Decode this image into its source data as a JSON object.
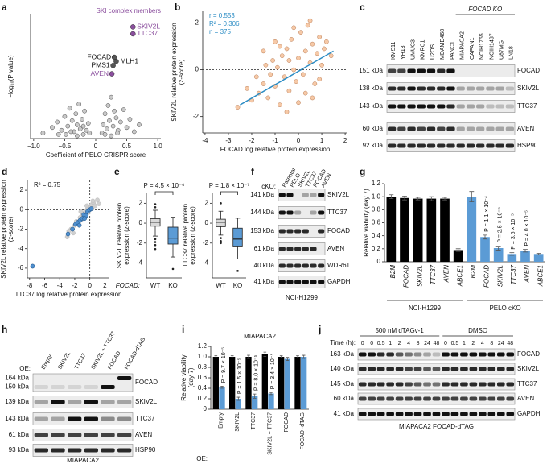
{
  "panel_labels": [
    "a",
    "b",
    "c",
    "d",
    "e",
    "f",
    "g",
    "h",
    "i",
    "j"
  ],
  "chart_data": [
    {
      "type": "scatter",
      "title": "SKI complex members",
      "title_color": "#8b4f9e",
      "x_label": "Coefficient of PELO CRISPR score",
      "y_label": [
        "−log₁₀(P value)"
      ],
      "xlim": [
        -1.05,
        1.05
      ],
      "xticks": [
        {
          "value": -1,
          "label": "−1.0"
        },
        {
          "value": -0.5,
          "label": "−0.5"
        },
        0,
        0.5,
        {
          "value": 1,
          "label": "1.0"
        }
      ],
      "ylim": [
        0,
        9
      ],
      "series": [
        {
          "color": "#c9c9c9",
          "stroke": "#444444",
          "x": [
            -0.85,
            -0.7,
            -0.62,
            -0.55,
            -0.5,
            -0.45,
            -0.42,
            -0.38,
            -0.35,
            -0.32,
            -0.3,
            -0.27,
            -0.25,
            -0.22,
            -0.2,
            -0.18,
            -0.15,
            -0.12,
            -0.1,
            -0.6,
            -0.48,
            -0.4,
            -0.3,
            -0.2,
            0.1,
            0.12,
            0.15,
            0.18,
            0.2,
            0.22,
            0.25,
            0.28,
            0.3,
            0.33,
            0.36,
            0.4,
            0.45,
            0.5,
            0.55,
            0.62,
            0.7,
            0.15,
            0.25,
            0.35
          ],
          "y": [
            0.4,
            0.8,
            1.2,
            0.6,
            1.6,
            0.9,
            2.2,
            1.3,
            0.5,
            1.8,
            1.0,
            2.5,
            0.7,
            1.4,
            0.9,
            2.0,
            0.6,
            1.1,
            0.4,
            0.3,
            0.3,
            0.5,
            0.2,
            0.3,
            0.4,
            1.0,
            1.8,
            0.7,
            2.4,
            1.3,
            3.0,
            0.9,
            2.0,
            1.5,
            0.6,
            1.2,
            2.1,
            0.8,
            1.4,
            0.5,
            1.0,
            0.3,
            0.2,
            0.4
          ]
        }
      ],
      "labeled_points": {
        "labels": [
          "SKIV2L",
          "TTC37",
          "FOCAD",
          "PMS1",
          "MLH1",
          "AVEN"
        ],
        "x": [
          0.6,
          0.6,
          0.3,
          0.28,
          0.33,
          0.26
        ],
        "y": [
          8.1,
          7.6,
          5.9,
          5.3,
          5.6,
          4.7
        ],
        "colors": [
          "#8b4f9e",
          "#8b4f9e",
          "#111111",
          "#111111",
          "#111111",
          "#8b4f9e"
        ]
      }
    },
    {
      "type": "scatter",
      "x_label": "FOCAD log relative protein expression",
      "y_label": [
        "SKIV2L relative protein expression",
        "(z-score)"
      ],
      "xlim": [
        -4.1,
        2.1
      ],
      "xticks": [
        -4,
        -3,
        -2,
        -1,
        0,
        1,
        2
      ],
      "ylim": [
        -2.7,
        2.5
      ],
      "yticks": [
        -2,
        0,
        2
      ],
      "reference_lines": {
        "y": 0
      },
      "series": [
        {
          "color": "#f6c9a7",
          "stroke": "#b87a52",
          "x": [
            -2.6,
            -2.2,
            -2.0,
            -1.8,
            -1.7,
            -1.5,
            -1.4,
            -1.3,
            -1.2,
            -1.1,
            -1.0,
            -0.9,
            -0.8,
            -0.7,
            -0.6,
            -0.5,
            -0.4,
            -0.3,
            -0.2,
            -0.1,
            0,
            0.1,
            0.2,
            0.3,
            0.4,
            0.5,
            0.6,
            0.7,
            0.8,
            0.9,
            1.0,
            1.1,
            1.2,
            1.4,
            -1.0,
            -0.5,
            0,
            0.5,
            -0.8,
            0.3,
            -0.2,
            0.6,
            -1.5,
            0.9,
            -0.4
          ],
          "y": [
            -1.6,
            -0.8,
            -1.3,
            -0.3,
            -1.0,
            -0.6,
            0.2,
            -1.2,
            -0.2,
            0.4,
            -0.7,
            0.1,
            -1.5,
            0.6,
            -0.3,
            0.9,
            -0.9,
            1.3,
            0.0,
            -0.5,
            0.5,
            1.6,
            -0.2,
            0.8,
            1.9,
            0.3,
            1.1,
            -0.6,
            0.7,
            1.4,
            0.2,
            0.9,
            1.2,
            0.6,
            1.2,
            -1.8,
            -1.4,
            2.1,
            1.0,
            -1.0,
            1.8,
            -1.2,
            0.8,
            -0.4,
            0.4
          ]
        }
      ],
      "fit": {
        "color": "#2b8cc4",
        "x": [
          -2.5,
          1.5
        ],
        "y": [
          -1.5,
          0.8
        ]
      },
      "annotations": [
        "r = 0.553",
        "R² = 0.306",
        "n = 375"
      ],
      "annotation_color": "#2b8cc4"
    },
    {
      "type": "scatter",
      "x_label": "TTC37 log relative protein expression",
      "y_label": [
        "SKIV2L relative protein expression",
        "(z-score)"
      ],
      "xlim": [
        -8.3,
        2.6
      ],
      "xticks": [
        -8,
        -6,
        -4,
        -2,
        0,
        2
      ],
      "ylim": [
        -7,
        3
      ],
      "yticks": [
        -6,
        -4,
        -2,
        0,
        2
      ],
      "reference_lines": {
        "x": 0,
        "y": 0
      },
      "series": [
        {
          "color": "#cfcfcf",
          "stroke": "#bbbbbb",
          "x": [
            -3,
            -2.5,
            -2.2,
            -2,
            -1.8,
            -1.5,
            -1.3,
            -1.1,
            -1,
            -0.8,
            -0.6,
            -0.5,
            -0.3,
            -0.2,
            0,
            0.2,
            0.3,
            0.5,
            0.7,
            1,
            -1.2,
            -0.4,
            0.4,
            -2.8,
            1.2
          ],
          "y": [
            -2.8,
            -2.0,
            -2.4,
            -1.6,
            -1.2,
            -1.4,
            -0.8,
            -1.0,
            -0.4,
            -0.6,
            -0.2,
            -0.7,
            0.1,
            -0.3,
            0.2,
            0.5,
            0.1,
            0.7,
            0.4,
            1.0,
            -0.2,
            0.4,
            0.9,
            -2.2,
            0.6
          ]
        },
        {
          "color": "#4f8fce",
          "stroke": "#1f4f80",
          "x": [
            -7.6,
            -2.9,
            -2.3,
            -1.9,
            -1.6,
            -1.3,
            -1.0,
            -0.8,
            -0.5,
            -0.3,
            0,
            0.2,
            -1.4,
            -0.7
          ],
          "y": [
            -5.8,
            -2.5,
            -2.0,
            -1.5,
            -1.3,
            -1.1,
            -0.9,
            -0.5,
            -0.6,
            -0.2,
            0,
            0.1,
            -1.6,
            -0.9
          ]
        }
      ],
      "annotations": [
        "R² = 0.75"
      ],
      "annotation_color": "#111111"
    },
    {
      "type": "box",
      "y_label": [
        "SKIV2L relative protein",
        "expression (z-score)"
      ],
      "x_label": "FOCAD:",
      "categories": [
        "WT",
        "KO"
      ],
      "colors": [
        "#d9d9d9",
        "#5b9bd5"
      ],
      "stats": [
        [
          -1.3,
          -0.3,
          0.1,
          0.45,
          1.3
        ],
        [
          -3.4,
          -2.1,
          -1.5,
          -0.4,
          0.6
        ]
      ],
      "outliers": [
        [
          -1.6,
          -1.9,
          -2.2,
          -2.6,
          1.6,
          1.9
        ],
        [
          -4.6
        ]
      ],
      "ylim": [
        -5.5,
        3
      ],
      "yticks": [
        -4,
        -2,
        0,
        2
      ],
      "p_label": "P = 4.5 × 10⁻⁶"
    },
    {
      "type": "box",
      "y_label": [
        "TTC37 relative protein",
        "expression (z-score)"
      ],
      "categories": [
        "WT",
        "KO"
      ],
      "colors": [
        "#d9d9d9",
        "#5b9bd5"
      ],
      "stats": [
        [
          -1.2,
          -0.35,
          0.1,
          0.4,
          1.2
        ],
        [
          -3.6,
          -2.3,
          -1.6,
          -0.5,
          0.5
        ]
      ],
      "outliers": [
        [
          -1.5,
          -1.8,
          -2.0,
          2.0
        ],
        [
          -4.8
        ]
      ],
      "ylim": [
        -5.5,
        3
      ],
      "yticks": [
        -4,
        -2,
        0,
        2
      ],
      "p_label": "P = 1.8 × 10⁻⁷"
    },
    {
      "type": "bar",
      "y_label": [
        "Relative viability (day 7)"
      ],
      "categories": [
        "B2M",
        "FOCAD",
        "SKIV2L",
        "TTC37",
        "AVEN",
        "ABCE1"
      ],
      "group_labels": [
        "NCI-H1299",
        "PELO cKO"
      ],
      "ylim": [
        0,
        1.2
      ],
      "yticks": [
        0,
        0.2,
        0.4,
        0.6,
        0.8,
        {
          "value": 1,
          "label": "1.0"
        },
        1.2
      ],
      "series": [
        {
          "color": "#000000",
          "values": [
            1.0,
            0.98,
            0.97,
            0.97,
            0.97,
            0.18
          ],
          "errors": [
            0.03,
            0.03,
            0.02,
            0.03,
            0.02,
            0.02
          ]
        },
        {
          "color": "#5b9bd5",
          "values": [
            1.0,
            0.38,
            0.21,
            0.12,
            0.17,
            0.12
          ],
          "errors": [
            0.08,
            0.03,
            0.03,
            0.02,
            0.02,
            0.01
          ],
          "annotations": [
            null,
            "P = 1.1 × 10⁻⁴",
            "P = 2.5 × 10⁻⁵",
            "P = 3.6 × 10⁻⁵",
            "P = 4.0 × 10⁻⁵",
            null
          ]
        }
      ]
    },
    {
      "type": "bar",
      "title": "MIAPACA2",
      "x_label": "OE:",
      "y_label": [
        "Relative viability",
        "(day 7)"
      ],
      "categories": [
        "Empty",
        "SKIV2L",
        "TTC37",
        "SKIV2L + TTC37",
        "FOCAD",
        "FOCAD -dTAG"
      ],
      "ylim": [
        0,
        1.2
      ],
      "yticks": [
        0,
        0.2,
        0.4,
        0.6,
        0.8,
        {
          "value": 1,
          "label": "1.0"
        },
        1.2
      ],
      "series": [
        {
          "color": "#000000",
          "values": [
            1.0,
            1.0,
            1.0,
            1.05,
            1.0,
            1.0
          ],
          "errors": [
            0.02,
            0.02,
            0.03,
            0.04,
            0.02,
            0.02
          ]
        },
        {
          "color": "#5b9bd5",
          "values": [
            0.42,
            0.2,
            0.25,
            0.3,
            0.96,
            1.0
          ],
          "errors": [
            0.02,
            0.03,
            0.04,
            0.02,
            0.03,
            0.03
          ],
          "annotations": [
            "P = 9.7 × 10⁻⁵",
            "P = 1.5 × 10⁻⁵",
            "P = 8.0 × 10⁻⁵",
            "P = 3.4 × 10⁻⁵",
            null,
            null
          ]
        }
      ]
    }
  ],
  "blots": [
    {
      "columns": [
        "KMS11",
        "YH13",
        "UMUC3",
        "KMRC1",
        "U2OS",
        "MDAMD468",
        "PANC1",
        "MIAPACA2",
        "CAPAN1",
        "NCIH1755",
        "NCIH1437",
        "U87MG",
        "LN18"
      ],
      "column_group": "FOCAD KO",
      "rows": [
        {
          "kda": "151 kDa",
          "protein": "FOCAD"
        },
        {
          "kda": "138 kDa",
          "protein": "SKIV2L"
        },
        {
          "kda": "143 kDa",
          "protein": "TTC37"
        },
        {
          "kda": "60 kDa",
          "protein": "AVEN"
        },
        {
          "kda": "92 kDa",
          "protein": "HSP90"
        }
      ]
    },
    {
      "column_header": "cKO:",
      "columns": [
        "Parental",
        "PELO",
        "SKIV2L",
        "TTC37",
        "FOCAD",
        "AVEN"
      ],
      "rows": [
        {
          "kda": "141 kDa",
          "protein": "SKIV2L"
        },
        {
          "kda": "144 kDa",
          "protein": "TTC37"
        },
        {
          "kda": "153 kDa",
          "protein": "FOCAD"
        },
        {
          "kda": "61 kDa",
          "protein": "AVEN"
        },
        {
          "kda": "40 kDa",
          "protein": "WDR61"
        },
        {
          "kda": "41 kDa",
          "protein": "GAPDH"
        }
      ],
      "caption": "NCI-H1299"
    },
    {
      "column_header": "OE:",
      "columns": [
        "Empty",
        "SKIV2L",
        "TTC37",
        "SKIV2L + TTC37",
        "FOCAD",
        "FOCAD-dTAG"
      ],
      "rows": [
        {
          "kda": [
            "164 kDa",
            "150 kDa"
          ],
          "protein": "FOCAD"
        },
        {
          "kda": "139 kDa",
          "protein": "SKIV2L"
        },
        {
          "kda": "143 kDa",
          "protein": "TTC37"
        },
        {
          "kda": "61 kDa",
          "protein": "AVEN"
        },
        {
          "kda": "93 kDa",
          "protein": "HSP90"
        }
      ],
      "caption": "MIAPACA2"
    },
    {
      "treatments": [
        "500 nM dTAGv-1",
        "DMSO"
      ],
      "column_header": "Time (h):",
      "columns": [
        0,
        0,
        0.5,
        1,
        2,
        4,
        8,
        24,
        48,
        0,
        0.5,
        1,
        2,
        4,
        8,
        24,
        48
      ],
      "rows": [
        {
          "kda": "163 kDa",
          "protein": "FOCAD"
        },
        {
          "kda": "140 kDa",
          "protein": "SKIV2L"
        },
        {
          "kda": "145 kDa",
          "protein": "TTC37"
        },
        {
          "kda": "60 kDa",
          "protein": "AVEN"
        },
        {
          "kda": "41 kDa",
          "protein": "GAPDH"
        }
      ],
      "caption": "MIAPACA2 FOCAD-dTAG"
    }
  ]
}
